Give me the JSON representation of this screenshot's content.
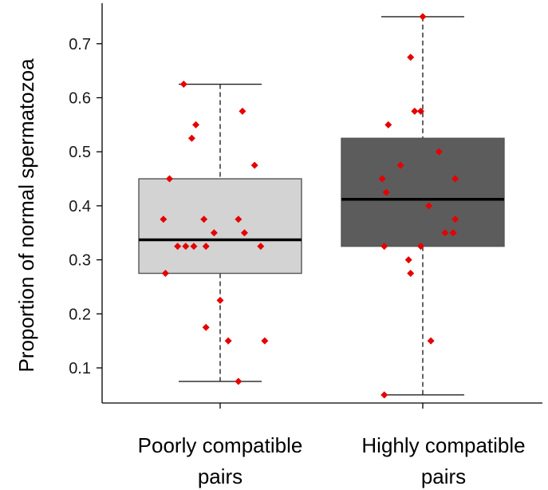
{
  "chart_data": {
    "type": "box",
    "ylabel": "Proportion of normal spermatozoa",
    "ylim": [
      0.035,
      0.775
    ],
    "yticks": [
      "0.1",
      "0.2",
      "0.3",
      "0.4",
      "0.5",
      "0.6",
      "0.7"
    ],
    "categories": [
      {
        "line1": "Poorly compatible",
        "line2": "pairs"
      },
      {
        "line1": "Highly compatible",
        "line2": "pairs"
      }
    ],
    "boxes": [
      {
        "whisker_low": 0.075,
        "q1": 0.275,
        "median": 0.337,
        "q3": 0.45,
        "whisker_high": 0.625,
        "fill": "#d3d3d3",
        "points": [
          [
            0.82,
            0.625
          ],
          [
            0.88,
            0.55
          ],
          [
            0.86,
            0.525
          ],
          [
            1.11,
            0.575
          ],
          [
            1.17,
            0.475
          ],
          [
            0.75,
            0.45
          ],
          [
            0.72,
            0.375
          ],
          [
            0.92,
            0.375
          ],
          [
            1.09,
            0.375
          ],
          [
            0.97,
            0.35
          ],
          [
            1.12,
            0.35
          ],
          [
            0.79,
            0.325
          ],
          [
            0.83,
            0.325
          ],
          [
            0.87,
            0.325
          ],
          [
            0.93,
            0.325
          ],
          [
            1.2,
            0.325
          ],
          [
            0.73,
            0.275
          ],
          [
            1.0,
            0.225
          ],
          [
            0.93,
            0.175
          ],
          [
            1.04,
            0.15
          ],
          [
            1.22,
            0.15
          ],
          [
            1.09,
            0.075
          ]
        ]
      },
      {
        "whisker_low": 0.05,
        "q1": 0.325,
        "median": 0.412,
        "q3": 0.525,
        "whisker_high": 0.75,
        "fill": "#5c5c5c",
        "points": [
          [
            2.0,
            0.75
          ],
          [
            1.94,
            0.675
          ],
          [
            1.96,
            0.575
          ],
          [
            1.99,
            0.575
          ],
          [
            1.83,
            0.55
          ],
          [
            2.08,
            0.5
          ],
          [
            1.89,
            0.475
          ],
          [
            1.8,
            0.45
          ],
          [
            2.16,
            0.45
          ],
          [
            1.82,
            0.425
          ],
          [
            2.03,
            0.4
          ],
          [
            2.16,
            0.375
          ],
          [
            2.11,
            0.35
          ],
          [
            2.15,
            0.35
          ],
          [
            1.81,
            0.325
          ],
          [
            1.99,
            0.325
          ],
          [
            1.93,
            0.3
          ],
          [
            1.94,
            0.275
          ],
          [
            2.04,
            0.15
          ],
          [
            1.81,
            0.05
          ]
        ]
      }
    ],
    "point_color": "#e60000",
    "median_color": "#000000",
    "box_stroke": "#555555",
    "whisker_style": "dashed"
  }
}
